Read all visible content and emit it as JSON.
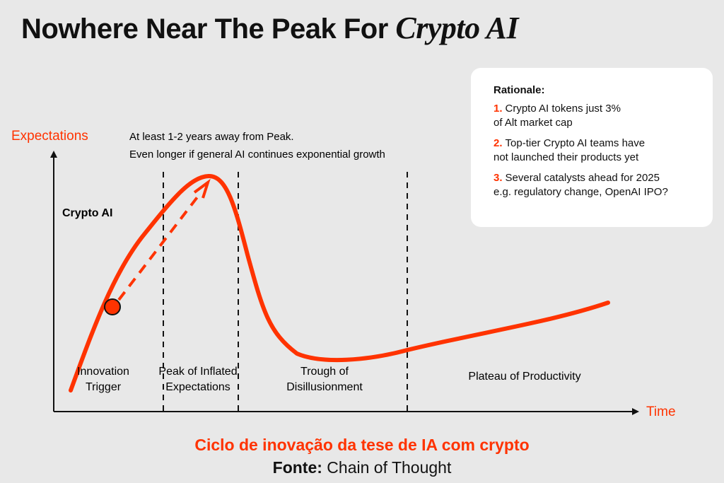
{
  "title": {
    "main": "Nowhere Near The Peak For",
    "emphasis": "Crypto AI"
  },
  "chart_data": {
    "type": "line",
    "xlabel": "Time",
    "ylabel": "Expectations",
    "series": [
      {
        "name": "",
        "x": [
          0,
          0.06,
          0.12,
          0.18,
          0.24,
          0.28,
          0.3,
          0.33,
          0.37,
          0.42,
          0.5,
          0.6,
          0.7,
          0.8,
          0.9,
          1.0
        ],
        "y": [
          0.06,
          0.33,
          0.55,
          0.75,
          0.83,
          0.8,
          0.7,
          0.4,
          0.25,
          0.2,
          0.19,
          0.21,
          0.24,
          0.28,
          0.34,
          0.41
        ]
      }
    ],
    "phases": [
      {
        "label_line1": "Innovation",
        "label_line2": "Trigger"
      },
      {
        "label_line1": "Peak of Inflated",
        "label_line2": "Expectations"
      },
      {
        "label_line1": "Trough of",
        "label_line2": "Disillusionment"
      },
      {
        "label_line1": "Plateau of Productivity",
        "label_line2": ""
      }
    ],
    "marker": {
      "label": "Crypto AI",
      "x": 0.1,
      "y": 0.37
    },
    "annotation": {
      "line1": "At least 1-2 years away from Peak.",
      "line2": "Even longer if general AI continues exponential growth"
    },
    "colors": {
      "curve": "#ff3300",
      "axis": "#111111"
    }
  },
  "rationale": {
    "heading": "Rationale:",
    "items": [
      {
        "num": "1.",
        "line1": "Crypto AI tokens just 3%",
        "line2": "of Alt market cap"
      },
      {
        "num": "2.",
        "line1": "Top-tier Crypto AI teams have",
        "line2": "not launched their products yet"
      },
      {
        "num": "3.",
        "line1": "Several catalysts ahead for 2025",
        "line2": "e.g. regulatory change, OpenAI IPO?"
      }
    ]
  },
  "caption": "Ciclo de inovação da tese de IA com crypto",
  "source": {
    "label": "Fonte:",
    "value": "Chain of Thought"
  }
}
